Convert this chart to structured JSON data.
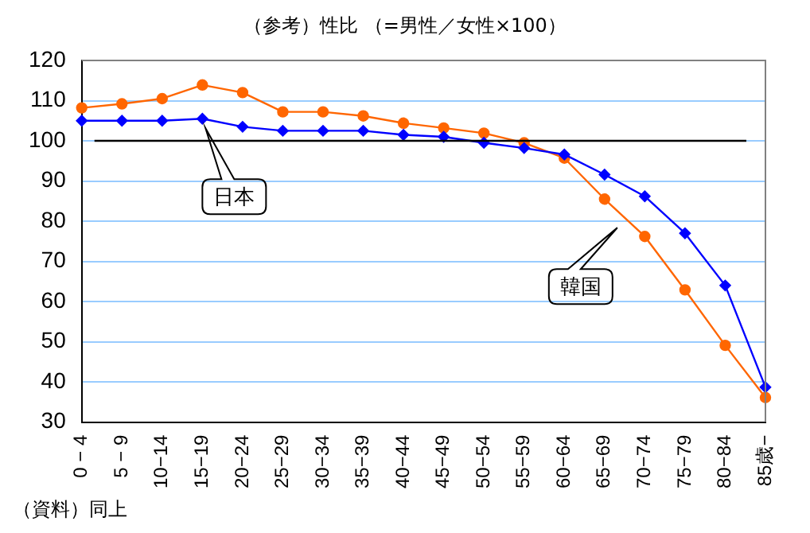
{
  "chart_data": {
    "type": "line",
    "title": "（参考）性比 （=男性／女性×100）",
    "categories": [
      "0 − 4",
      "5 − 9",
      "10−14",
      "15−19",
      "20−24",
      "25−29",
      "30−34",
      "35−39",
      "40−44",
      "45−49",
      "50−54",
      "55−59",
      "60−64",
      "65−69",
      "70−74",
      "75−79",
      "80−84",
      "85歳−"
    ],
    "series": [
      {
        "name": "日本",
        "color": "#0000ff",
        "marker": "diamond",
        "values": [
          105,
          105,
          105,
          105.5,
          103.5,
          102.5,
          102.5,
          102.5,
          101.5,
          101,
          99.5,
          98.2,
          96.6,
          91.6,
          86.2,
          77,
          64,
          38.7
        ]
      },
      {
        "name": "韓国",
        "color": "#ff6600",
        "marker": "circle",
        "values": [
          108.2,
          109.2,
          110.5,
          113.9,
          112,
          107.2,
          107.2,
          106.2,
          104.4,
          103.2,
          101.9,
          99.5,
          95.7,
          85.5,
          76.2,
          62.9,
          49.1,
          36.1
        ]
      }
    ],
    "ylim": [
      30,
      120
    ],
    "yticks": [
      30,
      40,
      50,
      60,
      70,
      80,
      90,
      100,
      110,
      120
    ],
    "grid": "y",
    "legend": false,
    "ref_lines": [
      {
        "axis": "y",
        "value": 100,
        "color": "#000000"
      }
    ],
    "annotations": [
      "（資料）同上"
    ]
  }
}
